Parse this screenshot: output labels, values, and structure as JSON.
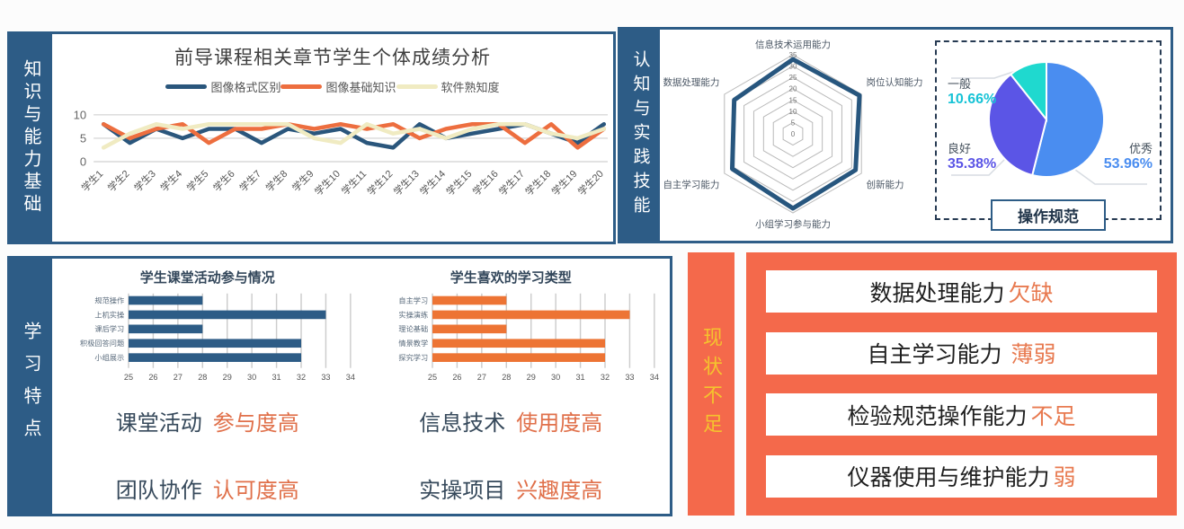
{
  "panel_knowledge": {
    "sidebar": "知识与能力基础"
  },
  "panel_cognition": {
    "sidebar": "认知与实践技能"
  },
  "panel_learning": {
    "sidebar": "学习特点",
    "highlights": [
      {
        "label": "课堂活动",
        "value": "参与度高"
      },
      {
        "label": "信息技术",
        "value": "使用度高"
      },
      {
        "label": "团队协作",
        "value": "认可度高"
      },
      {
        "label": "实操项目",
        "value": "兴趣度高"
      }
    ]
  },
  "panel_deficiency": {
    "sidebar": "现状不足",
    "items": [
      {
        "text": "数据处理能力",
        "accent": "欠缺"
      },
      {
        "text": "自主学习能力",
        "accent": "薄弱"
      },
      {
        "text": "检验规范操作能力",
        "accent": "不足"
      },
      {
        "text": "仪器使用与维护能力",
        "accent": "弱"
      }
    ]
  },
  "chart_data": [
    {
      "type": "line",
      "title": "前导课程相关章节学生个体成绩分析",
      "categories": [
        "学生1",
        "学生2",
        "学生3",
        "学生4",
        "学生5",
        "学生6",
        "学生7",
        "学生8",
        "学生9",
        "学生10",
        "学生11",
        "学生12",
        "学生13",
        "学生14",
        "学生15",
        "学生16",
        "学生17",
        "学生18",
        "学生19",
        "学生20"
      ],
      "series": [
        {
          "name": "图像格式区别",
          "color": "#2a567c",
          "values": [
            8,
            4,
            7,
            5,
            7,
            7,
            4,
            7,
            6,
            7,
            4,
            3,
            8,
            5,
            6,
            7,
            8,
            6,
            4,
            8
          ]
        },
        {
          "name": "图像基础知识",
          "color": "#ed6e3f",
          "values": [
            8,
            5,
            7,
            8,
            4,
            7,
            7,
            8,
            7,
            8,
            7,
            8,
            5,
            7,
            8,
            8,
            4,
            8,
            3,
            7
          ]
        },
        {
          "name": "软件熟知度",
          "color": "#f0ebc2",
          "values": [
            3,
            6,
            8,
            7,
            8,
            8,
            8,
            8,
            5,
            4,
            8,
            6,
            7,
            5,
            7,
            8,
            8,
            6,
            5,
            7
          ]
        }
      ],
      "ylim": [
        0,
        10
      ],
      "yticks": [
        0,
        5,
        10
      ],
      "grid": true,
      "legend_position": "top"
    },
    {
      "type": "radar",
      "categories": [
        "信息技术运用能力",
        "岗位认知能力",
        "创新能力",
        "小组学习参与能力",
        "自主学习能力",
        "数据处理能力"
      ],
      "values": [
        33,
        34,
        32,
        33,
        31,
        30
      ],
      "rmax": 35,
      "rticks": [
        0,
        5,
        10,
        15,
        20,
        25,
        30,
        35
      ],
      "color": "#27567e"
    },
    {
      "type": "pie",
      "title": "操作规范",
      "slices": [
        {
          "label": "优秀",
          "value": 53.96,
          "display": "53.96%",
          "color": "#4a8df0"
        },
        {
          "label": "良好",
          "value": 35.38,
          "display": "35.38%",
          "color": "#5b55e6"
        },
        {
          "label": "一般",
          "value": 10.66,
          "display": "10.66%",
          "color": "#1fd9cf"
        }
      ]
    },
    {
      "type": "bar",
      "title": "学生课堂活动参与情况",
      "categories": [
        "规范操作",
        "上机实操",
        "课后学习",
        "积极回答问题",
        "小组展示"
      ],
      "values": [
        28,
        33,
        28,
        32,
        32
      ],
      "xlim": [
        25,
        34
      ],
      "xticks": [
        25,
        26,
        27,
        28,
        29,
        30,
        31,
        32,
        33,
        34
      ],
      "color": "#2d5c86",
      "grid": true
    },
    {
      "type": "bar",
      "title": "学生喜欢的学习类型",
      "categories": [
        "自主学习",
        "实操演练",
        "理论基础",
        "情景教学",
        "探究学习"
      ],
      "values": [
        28,
        33,
        28,
        32,
        32
      ],
      "xlim": [
        25,
        34
      ],
      "xticks": [
        25,
        26,
        27,
        28,
        29,
        30,
        31,
        32,
        33,
        34
      ],
      "color": "#ed7434",
      "grid": true
    }
  ]
}
